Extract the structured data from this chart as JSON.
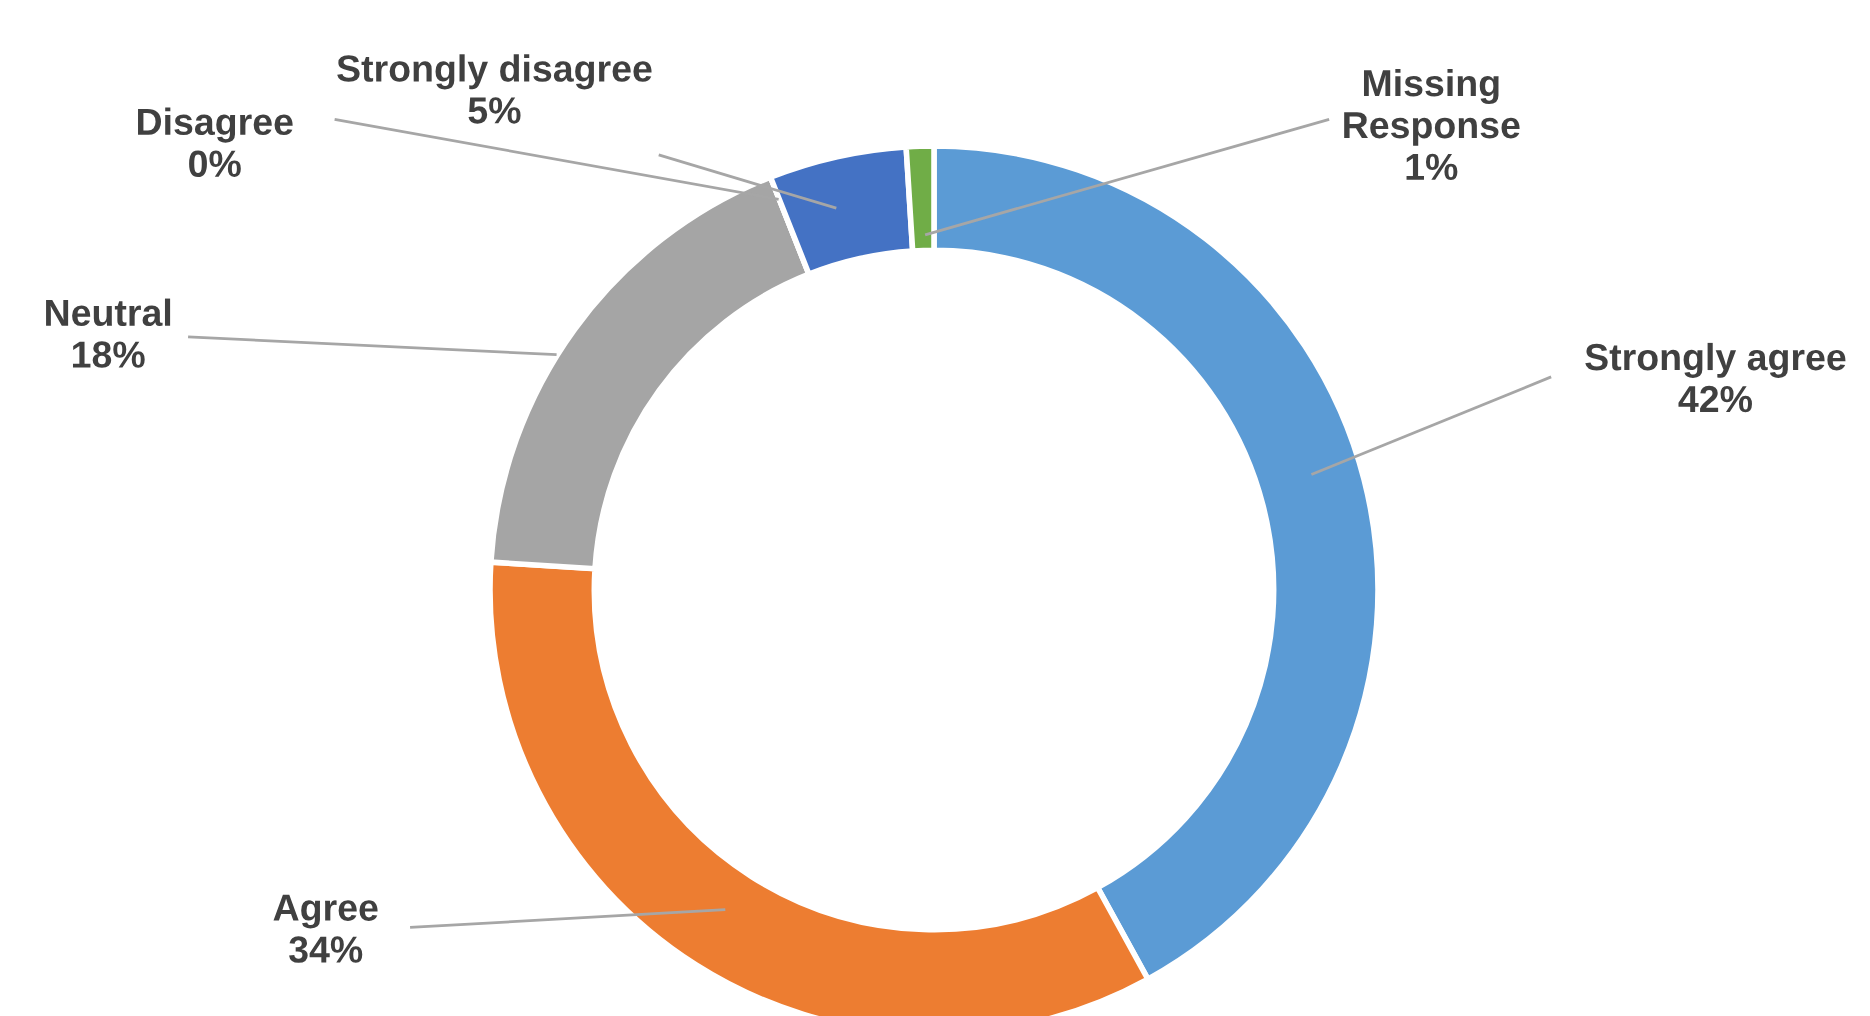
{
  "chart_data": {
    "type": "donut",
    "categories": [
      "Strongly agree",
      "Agree",
      "Neutral",
      "Disagree",
      "Strongly disagree",
      "Missing Response"
    ],
    "values": [
      42,
      34,
      18,
      0,
      5,
      1
    ],
    "value_labels": [
      "42%",
      "34%",
      "18%",
      "0%",
      "5%",
      "1%"
    ],
    "colors": [
      "#5b9bd5",
      "#ed7d31",
      "#a5a5a5",
      "#ffc000",
      "#4472c4",
      "#70ad47"
    ],
    "legend": false
  }
}
